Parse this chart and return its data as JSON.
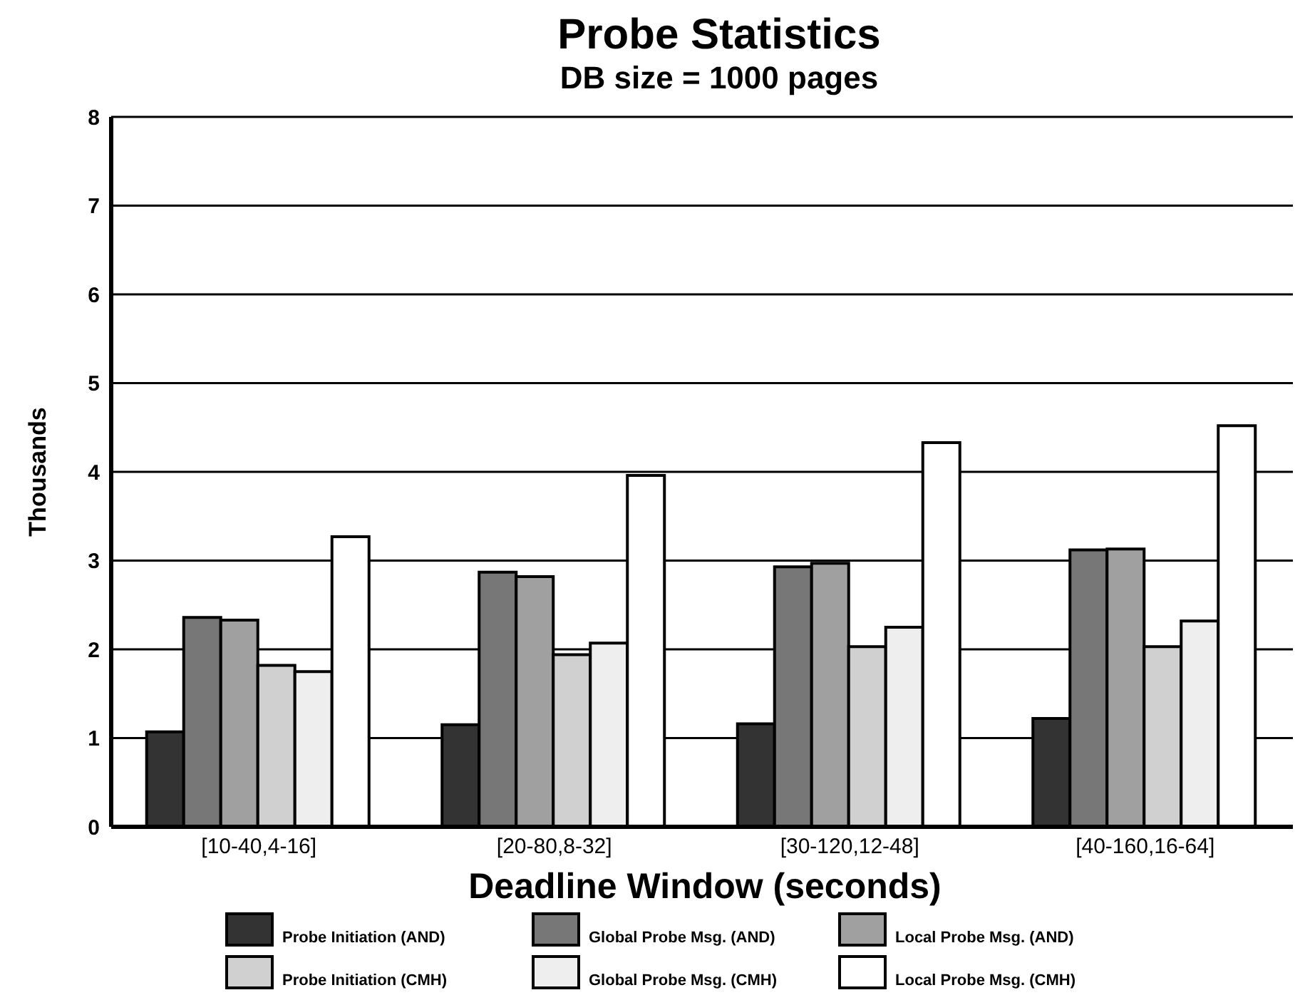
{
  "chart_data": {
    "type": "bar",
    "title": "Probe Statistics",
    "subtitle": "DB size = 1000 pages",
    "xlabel": "Deadline Window (seconds)",
    "ylabel": "Thousands",
    "categories": [
      "[10-40,4-16]",
      "[20-80,8-32]",
      "[30-120,12-48]",
      "[40-160,16-64]"
    ],
    "series": [
      {
        "name": "Probe Initiation (AND)",
        "color": "#333333",
        "values": [
          1.07,
          1.15,
          1.16,
          1.22
        ]
      },
      {
        "name": "Global Probe Msg. (AND)",
        "color": "#777777",
        "values": [
          2.36,
          2.87,
          2.93,
          3.12
        ]
      },
      {
        "name": "Local Probe Msg. (AND)",
        "color": "#a0a0a0",
        "values": [
          2.33,
          2.82,
          2.97,
          3.13
        ]
      },
      {
        "name": "Probe Initiation (CMH)",
        "color": "#d0d0d0",
        "values": [
          1.82,
          1.94,
          2.03,
          2.03
        ]
      },
      {
        "name": "Global Probe Msg. (CMH)",
        "color": "#eeeeee",
        "values": [
          1.75,
          2.07,
          2.25,
          2.32
        ]
      },
      {
        "name": "Local Probe Msg. (CMH)",
        "color": "#ffffff",
        "values": [
          3.27,
          3.96,
          4.33,
          4.52
        ]
      }
    ],
    "ylim": [
      0,
      8
    ],
    "yticks": [
      0,
      1,
      2,
      3,
      4,
      5,
      6,
      7,
      8
    ],
    "grid": "y",
    "legend": "bottom"
  }
}
